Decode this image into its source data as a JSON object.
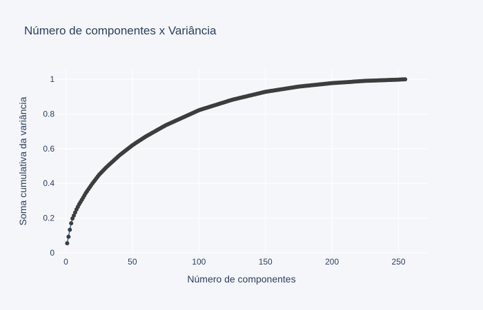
{
  "chart_data": {
    "type": "scatter",
    "title": "Número de componentes x Variância",
    "xlabel": "Número de componentes",
    "ylabel": "Soma cumulativa da variância",
    "xlim": [
      -8,
      272
    ],
    "ylim": [
      0,
      1.06
    ],
    "xticks": [
      0,
      50,
      100,
      150,
      200,
      250
    ],
    "yticks": [
      0,
      0.2,
      0.4,
      0.6,
      0.8,
      1
    ],
    "xtick_labels": [
      "0",
      "50",
      "100",
      "150",
      "200",
      "250"
    ],
    "ytick_labels": [
      "0",
      "0.2",
      "0.4",
      "0.6",
      "0.8",
      "1"
    ],
    "grid": true,
    "legend": "none",
    "colors": {
      "line": "#1f77b4",
      "marker": "#3d3d3d",
      "background": "#f5f6fa",
      "grid": "#ffffff",
      "text": "#2a3f5f"
    },
    "series": [
      {
        "x": [
          1,
          2,
          3,
          4,
          5,
          6,
          8,
          10,
          12,
          15,
          20,
          25,
          30,
          40,
          50,
          60,
          75,
          100,
          125,
          150,
          175,
          200,
          225,
          250,
          255
        ],
        "values": [
          0.055,
          0.093,
          0.133,
          0.17,
          0.198,
          0.215,
          0.25,
          0.28,
          0.305,
          0.345,
          0.4,
          0.45,
          0.49,
          0.56,
          0.62,
          0.67,
          0.735,
          0.822,
          0.882,
          0.928,
          0.958,
          0.978,
          0.991,
          0.998,
          1.0
        ]
      }
    ]
  }
}
